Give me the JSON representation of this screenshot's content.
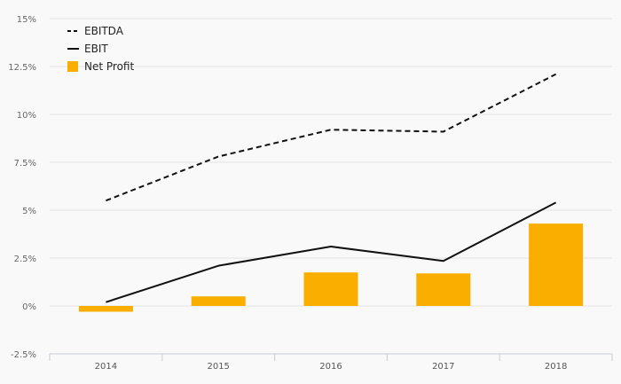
{
  "chart_data": {
    "type": "bar+line",
    "categories": [
      "2014",
      "2015",
      "2016",
      "2017",
      "2018"
    ],
    "series": [
      {
        "name": "EBITDA",
        "kind": "line",
        "style": "dashed",
        "color": "#111111",
        "values": [
          5.5,
          7.8,
          9.2,
          9.1,
          12.1
        ]
      },
      {
        "name": "EBIT",
        "kind": "line",
        "style": "solid",
        "color": "#111111",
        "values": [
          0.2,
          2.1,
          3.1,
          2.35,
          5.4
        ]
      },
      {
        "name": "Net Profit",
        "kind": "bar",
        "color": "#f9ae00",
        "values": [
          -0.3,
          0.5,
          1.75,
          1.7,
          4.3
        ]
      }
    ],
    "ylim": [
      -2.5,
      15
    ],
    "yticks": [
      -2.5,
      0,
      2.5,
      5,
      7.5,
      10,
      12.5,
      15
    ],
    "ytick_labels": [
      "-2.5%",
      "0%",
      "2.5%",
      "5%",
      "7.5%",
      "10%",
      "12.5%",
      "15%"
    ],
    "grid": true,
    "legend_position": "top-left",
    "title": "",
    "xlabel": "",
    "ylabel": ""
  }
}
